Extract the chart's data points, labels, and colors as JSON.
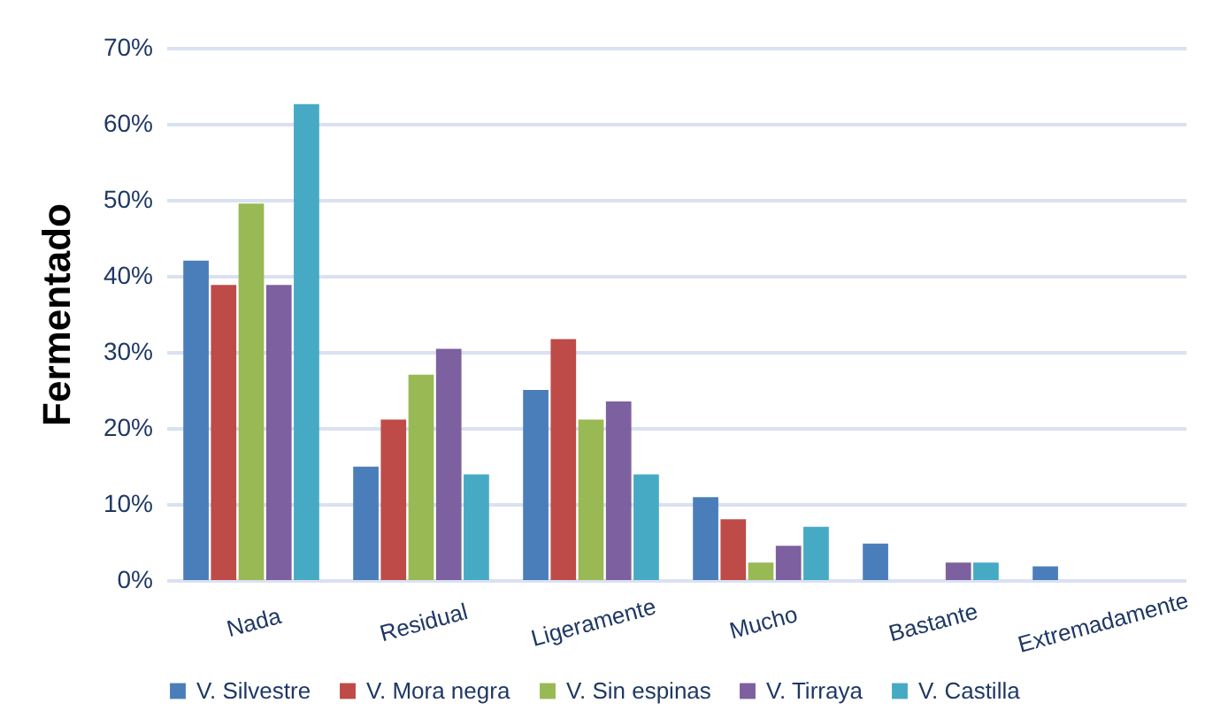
{
  "chart_data": {
    "type": "bar",
    "ylabel": "Fermentado",
    "categories": [
      "Nada",
      "Residual",
      "Ligeramente",
      "Mucho",
      "Bastante",
      "Extremadamente"
    ],
    "series": [
      {
        "name": "V. Silvestre",
        "color": "#4a7ebb",
        "values": [
          42.0,
          14.9,
          25.0,
          10.9,
          4.8,
          1.8
        ]
      },
      {
        "name": "V. Mora negra",
        "color": "#be4b48",
        "values": [
          38.8,
          21.1,
          31.7,
          8.0,
          0,
          0
        ]
      },
      {
        "name": "V. Sin espinas",
        "color": "#98b954",
        "values": [
          49.5,
          27.0,
          21.1,
          2.3,
          0,
          0
        ]
      },
      {
        "name": "V. Tirraya",
        "color": "#7d60a0",
        "values": [
          38.8,
          30.4,
          23.5,
          4.5,
          2.3,
          0
        ]
      },
      {
        "name": "V. Castilla",
        "color": "#46aac5",
        "values": [
          62.6,
          13.9,
          13.9,
          7.0,
          2.3,
          0
        ]
      }
    ],
    "ylim": [
      0,
      70
    ],
    "yticks": [
      {
        "value": 0,
        "label": "0%"
      },
      {
        "value": 10,
        "label": "10%"
      },
      {
        "value": 20,
        "label": "20%"
      },
      {
        "value": 30,
        "label": "30%"
      },
      {
        "value": 40,
        "label": "40%"
      },
      {
        "value": 50,
        "label": "50%"
      },
      {
        "value": 60,
        "label": "60%"
      },
      {
        "value": 70,
        "label": "70%"
      }
    ],
    "grid": "y",
    "legend": "bottom"
  }
}
